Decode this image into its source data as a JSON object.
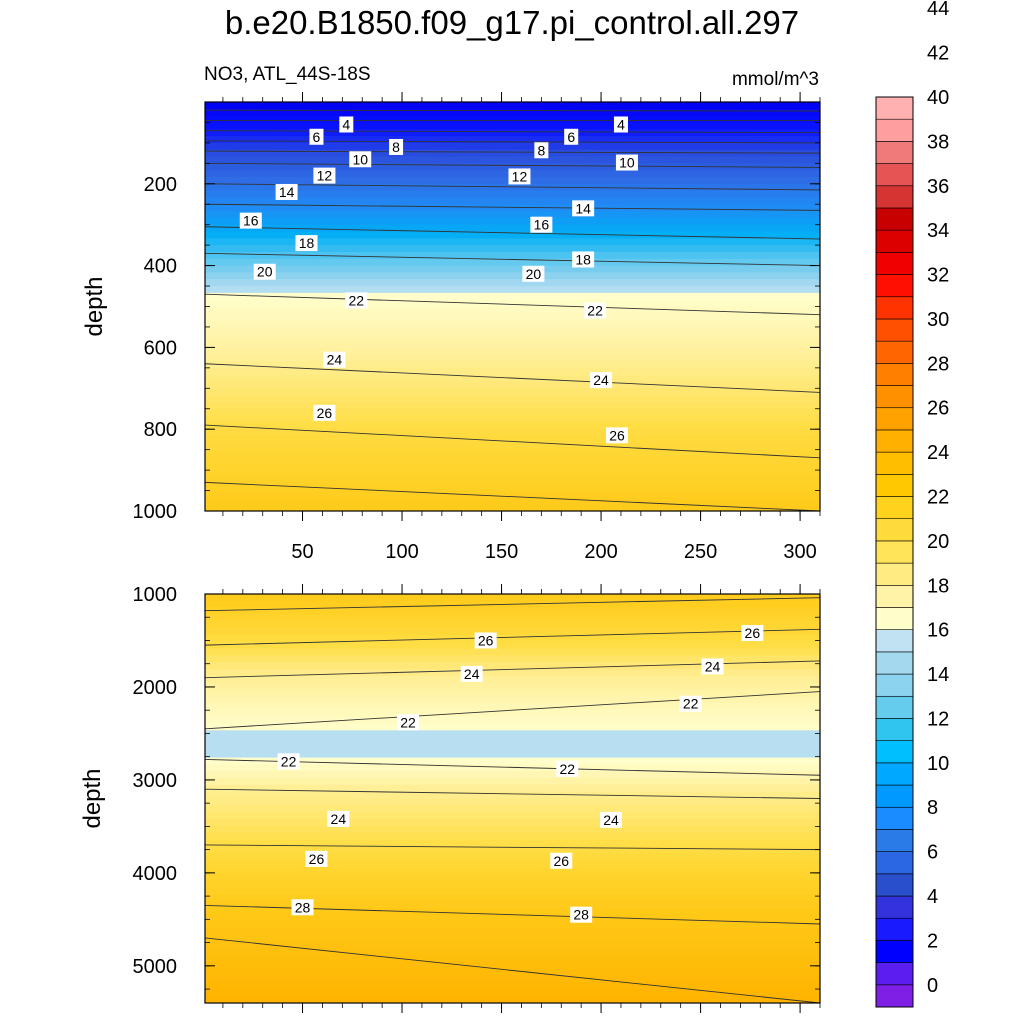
{
  "title": "b.e20.B1850.f09_g17.pi_control.all.297",
  "variable_region": "NO3, ATL_44S-18S",
  "units": "mmol/m^3",
  "colorbar": {
    "levels": [
      0,
      2,
      4,
      6,
      8,
      10,
      12,
      14,
      16,
      18,
      20,
      22,
      24,
      26,
      28,
      30,
      32,
      34,
      36,
      38,
      40,
      42,
      44
    ],
    "colors": [
      "#7f1fe6",
      "#5a1ff0",
      "#0000ff",
      "#1a1aff",
      "#3333dd",
      "#2a4fcc",
      "#2b66e3",
      "#2a7ae8",
      "#1a8cff",
      "#0099ff",
      "#00a8ff",
      "#00bfff",
      "#30c5ef",
      "#66ccee",
      "#8cd3f0",
      "#a3d8ee",
      "#c0e2f2",
      "#ffffcc",
      "#fff3a8",
      "#ffeb82",
      "#ffe45a",
      "#ffdc3c",
      "#ffd21e",
      "#ffc800",
      "#ffbe00",
      "#ffb000",
      "#ffa200",
      "#ff9100",
      "#ff7f00",
      "#ff6600",
      "#ff4f00",
      "#ff3300",
      "#ff1000",
      "#f00000",
      "#dc0000",
      "#c80000",
      "#d63333",
      "#e65454",
      "#f07a7a",
      "#ff9e9e",
      "#ffb0b0"
    ]
  },
  "chart_data": [
    {
      "type": "contour",
      "panel": "upper",
      "xlabel": "",
      "ylabel": "depth",
      "xlim": [
        1,
        310
      ],
      "ylim": [
        1000,
        0
      ],
      "xticks": [
        50,
        100,
        150,
        200,
        250,
        300
      ],
      "yticks": [
        200,
        400,
        600,
        800,
        1000
      ],
      "contour_lines": [
        {
          "level": 2,
          "depth_left": 20,
          "depth_right": 22
        },
        {
          "level": 4,
          "depth_left": 45,
          "depth_right": 45
        },
        {
          "level": 6,
          "depth_left": 70,
          "depth_right": 75
        },
        {
          "level": 8,
          "depth_left": 95,
          "depth_right": 100
        },
        {
          "level": 10,
          "depth_left": 120,
          "depth_right": 125
        },
        {
          "level": 12,
          "depth_left": 150,
          "depth_right": 160
        },
        {
          "level": 14,
          "depth_left": 200,
          "depth_right": 215
        },
        {
          "level": 16,
          "depth_left": 250,
          "depth_right": 265
        },
        {
          "level": 18,
          "depth_left": 305,
          "depth_right": 335
        },
        {
          "level": 20,
          "depth_left": 370,
          "depth_right": 400
        },
        {
          "level": 22,
          "depth_left": 470,
          "depth_right": 520
        },
        {
          "level": 24,
          "depth_left": 640,
          "depth_right": 710
        },
        {
          "level": 26,
          "depth_left": 790,
          "depth_right": 870
        },
        {
          "level": 28,
          "depth_left": 930,
          "depth_right": 1000
        }
      ],
      "contour_labels": [
        {
          "text": "4",
          "x": 72,
          "depth": 55
        },
        {
          "text": "4",
          "x": 210,
          "depth": 55
        },
        {
          "text": "6",
          "x": 57,
          "depth": 85
        },
        {
          "text": "6",
          "x": 185,
          "depth": 85
        },
        {
          "text": "8",
          "x": 97,
          "depth": 110
        },
        {
          "text": "8",
          "x": 170,
          "depth": 118
        },
        {
          "text": "10",
          "x": 79,
          "depth": 140
        },
        {
          "text": "10",
          "x": 213,
          "depth": 148
        },
        {
          "text": "12",
          "x": 61,
          "depth": 180
        },
        {
          "text": "12",
          "x": 159,
          "depth": 182
        },
        {
          "text": "14",
          "x": 42,
          "depth": 220
        },
        {
          "text": "14",
          "x": 191,
          "depth": 260
        },
        {
          "text": "16",
          "x": 24,
          "depth": 290
        },
        {
          "text": "16",
          "x": 170,
          "depth": 300
        },
        {
          "text": "18",
          "x": 52,
          "depth": 345
        },
        {
          "text": "18",
          "x": 191,
          "depth": 385
        },
        {
          "text": "20",
          "x": 31,
          "depth": 415
        },
        {
          "text": "20",
          "x": 166,
          "depth": 420
        },
        {
          "text": "22",
          "x": 77,
          "depth": 485
        },
        {
          "text": "22",
          "x": 197,
          "depth": 510
        },
        {
          "text": "24",
          "x": 66,
          "depth": 630
        },
        {
          "text": "24",
          "x": 200,
          "depth": 680
        },
        {
          "text": "26",
          "x": 61,
          "depth": 760
        },
        {
          "text": "26",
          "x": 208,
          "depth": 815
        }
      ]
    },
    {
      "type": "contour",
      "panel": "lower",
      "xlabel": "",
      "ylabel": "depth",
      "xlim": [
        1,
        310
      ],
      "ylim": [
        5400,
        1000
      ],
      "yticks": [
        1000,
        2000,
        3000,
        4000,
        5000
      ],
      "contour_lines": [
        {
          "level": 28,
          "depth_left": 1180,
          "depth_right": 1040
        },
        {
          "level": 26,
          "depth_left": 1550,
          "depth_right": 1380
        },
        {
          "level": 24,
          "depth_left": 1900,
          "depth_right": 1720
        },
        {
          "level": 22,
          "depth_left": 2450,
          "depth_right": 2050
        },
        {
          "level": 22,
          "depth_left": 2780,
          "depth_right": 2950
        },
        {
          "level": 24,
          "depth_left": 3100,
          "depth_right": 3200
        },
        {
          "level": 26,
          "depth_left": 3700,
          "depth_right": 3750
        },
        {
          "level": 28,
          "depth_left": 4350,
          "depth_right": 4550
        },
        {
          "level": 30,
          "depth_left": 4700,
          "depth_right": 5400
        }
      ],
      "contour_labels": [
        {
          "text": "26",
          "x": 142,
          "depth": 1500
        },
        {
          "text": "26",
          "x": 276,
          "depth": 1420
        },
        {
          "text": "24",
          "x": 135,
          "depth": 1860
        },
        {
          "text": "24",
          "x": 256,
          "depth": 1780
        },
        {
          "text": "22",
          "x": 103,
          "depth": 2380
        },
        {
          "text": "22",
          "x": 245,
          "depth": 2180
        },
        {
          "text": "22",
          "x": 43,
          "depth": 2800
        },
        {
          "text": "22",
          "x": 183,
          "depth": 2880
        },
        {
          "text": "24",
          "x": 68,
          "depth": 3420
        },
        {
          "text": "24",
          "x": 205,
          "depth": 3430
        },
        {
          "text": "26",
          "x": 57,
          "depth": 3850
        },
        {
          "text": "26",
          "x": 180,
          "depth": 3870
        },
        {
          "text": "28",
          "x": 50,
          "depth": 4370
        },
        {
          "text": "28",
          "x": 190,
          "depth": 4450
        }
      ]
    }
  ]
}
